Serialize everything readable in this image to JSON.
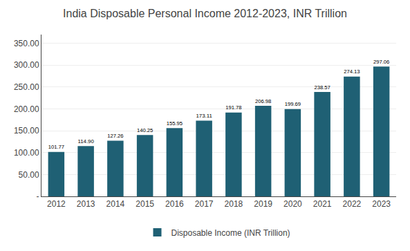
{
  "chart_data": {
    "type": "bar",
    "title": "India Disposable Personal Income 2012-2023, INR Trillion",
    "categories": [
      "2012",
      "2013",
      "2014",
      "2015",
      "2016",
      "2017",
      "2018",
      "2019",
      "2020",
      "2021",
      "2022",
      "2023"
    ],
    "series": [
      {
        "name": "Disposable Income (INR Trillion)",
        "color": "#1f6074",
        "values": [
          101.77,
          114.9,
          127.26,
          140.25,
          155.95,
          173.11,
          191.78,
          206.98,
          199.69,
          238.57,
          274.13,
          297.06
        ],
        "value_labels": [
          "101.77",
          "114.90",
          "127.26",
          "140.25",
          "155.95",
          "173.11",
          "191.78",
          "206.98",
          "199.69",
          "238.57",
          "274.13",
          "297.06"
        ]
      }
    ],
    "ylim": [
      0,
      370
    ],
    "yticks": [
      {
        "value": 0,
        "label": "-"
      },
      {
        "value": 50,
        "label": "50.00"
      },
      {
        "value": 100,
        "label": "100.00"
      },
      {
        "value": 150,
        "label": "150.00"
      },
      {
        "value": 200,
        "label": "200.00"
      },
      {
        "value": 250,
        "label": "250.00"
      },
      {
        "value": 300,
        "label": "300.00"
      },
      {
        "value": 350,
        "label": "350.00"
      }
    ],
    "grid": true,
    "legend": "bottom",
    "data_labels": true
  }
}
